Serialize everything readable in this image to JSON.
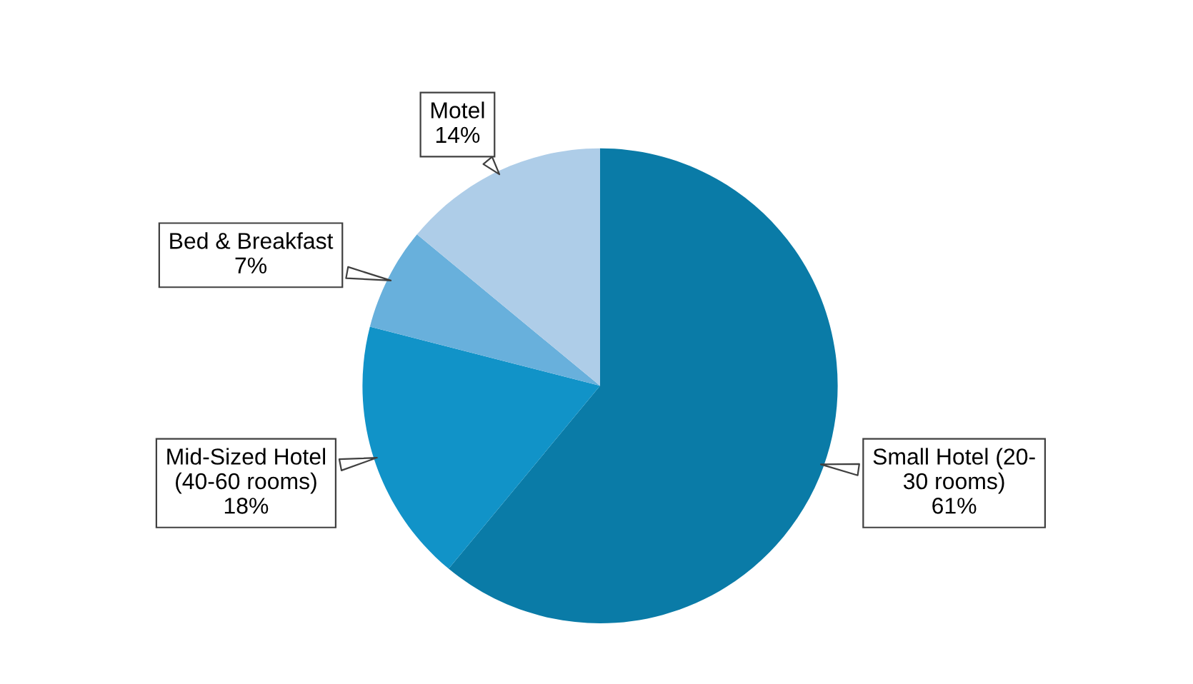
{
  "chart_data": {
    "type": "pie",
    "categories": [
      "Small Hotel (20-\n30 rooms)",
      "Mid-Sized Hotel\n(40-60 rooms)",
      "Bed & Breakfast",
      "Motel"
    ],
    "values": [
      61,
      18,
      7,
      14
    ],
    "colors": [
      "#0a7ba7",
      "#1193c8",
      "#68b0dc",
      "#aecde8"
    ],
    "value_labels": [
      "61%",
      "18%",
      "7%",
      "14%"
    ],
    "legend": false
  }
}
